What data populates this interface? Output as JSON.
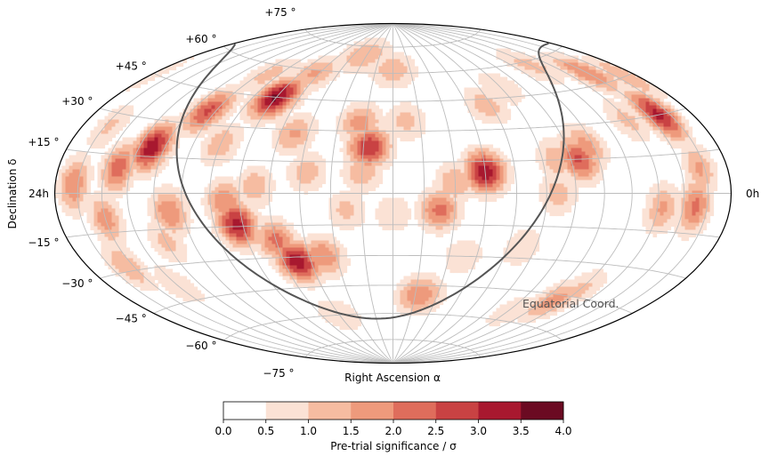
{
  "chart_data": {
    "type": "heatmap",
    "projection": "hammer-aitoff",
    "coordinate_system": "equatorial",
    "annotation": "Equatorial Coord.",
    "xlabel": "Right Ascension α",
    "ylabel": "Declination δ",
    "ra_range_h": [
      0,
      24
    ],
    "dec_range_deg": [
      -90,
      90
    ],
    "ra_edge_labels": {
      "left": "24h",
      "right": "0h"
    },
    "dec_tick_labels": [
      {
        "dec": 75,
        "label": "+75 °"
      },
      {
        "dec": 60,
        "label": "+60 °"
      },
      {
        "dec": 45,
        "label": "+45 °"
      },
      {
        "dec": 30,
        "label": "+30 °"
      },
      {
        "dec": 15,
        "label": "+15 °"
      },
      {
        "dec": -15,
        "label": "−15 °"
      },
      {
        "dec": -30,
        "label": "−30 °"
      },
      {
        "dec": -45,
        "label": "−45 °"
      },
      {
        "dec": -60,
        "label": "−60 °"
      },
      {
        "dec": -75,
        "label": "−75 °"
      }
    ],
    "colorbar": {
      "label": "Pre-trial significance / σ",
      "ticks": [
        "0.0",
        "0.5",
        "1.0",
        "1.5",
        "2.0",
        "2.5",
        "3.0",
        "3.5",
        "4.0"
      ],
      "range": [
        0,
        4
      ],
      "levels": [
        0,
        0.5,
        1.0,
        1.5,
        2.0,
        2.5,
        3.0,
        3.5,
        4.0
      ],
      "colors": [
        "#ffffff",
        "#fbe2d5",
        "#f6bca1",
        "#ee9a7c",
        "#df6d5c",
        "#c94243",
        "#a8182f",
        "#6b0a22"
      ]
    },
    "hotspots": [
      {
        "ra_h": 1.5,
        "dec": 30,
        "sigma": 3.2
      },
      {
        "ra_h": 2.0,
        "dec": 50,
        "sigma": 2.0
      },
      {
        "ra_h": 5.7,
        "dec": 15,
        "sigma": 2.6
      },
      {
        "ra_h": 5.3,
        "dec": 20,
        "sigma": 1.8
      },
      {
        "ra_h": 6.6,
        "dec": 0,
        "sigma": 1.3
      },
      {
        "ra_h": 9.0,
        "dec": 10,
        "sigma": 3.4
      },
      {
        "ra_h": 10.0,
        "dec": 5,
        "sigma": 1.5
      },
      {
        "ra_h": 10.5,
        "dec": -8,
        "sigma": 2.2
      },
      {
        "ra_h": 12.8,
        "dec": 22,
        "sigma": 3.0
      },
      {
        "ra_h": 13.2,
        "dec": 34,
        "sigma": 1.8
      },
      {
        "ra_h": 13.0,
        "dec": 10,
        "sigma": 1.4
      },
      {
        "ra_h": 14.2,
        "dec": 70,
        "sigma": 1.5
      },
      {
        "ra_h": 15.5,
        "dec": 28,
        "sigma": 1.6
      },
      {
        "ra_h": 16.5,
        "dec": 3,
        "sigma": 1.4
      },
      {
        "ra_h": 16.3,
        "dec": 58,
        "sigma": 1.6
      },
      {
        "ra_h": 17.0,
        "dec": 45,
        "sigma": 3.6
      },
      {
        "ra_h": 17.2,
        "dec": -14,
        "sigma": 3.3
      },
      {
        "ra_h": 16.0,
        "dec": -22,
        "sigma": 2.2
      },
      {
        "ra_h": 15.5,
        "dec": -32,
        "sigma": 3.4
      },
      {
        "ra_h": 14.5,
        "dec": -30,
        "sigma": 2.0
      },
      {
        "ra_h": 17.5,
        "dec": -4,
        "sigma": 2.0
      },
      {
        "ra_h": 19.3,
        "dec": 36,
        "sigma": 2.6
      },
      {
        "ra_h": 20.5,
        "dec": 19,
        "sigma": 3.4
      },
      {
        "ra_h": 21.5,
        "dec": 10,
        "sigma": 2.3
      },
      {
        "ra_h": 19.5,
        "dec": -8,
        "sigma": 2.0
      },
      {
        "ra_h": 22.0,
        "dec": -10,
        "sigma": 1.8
      },
      {
        "ra_h": 22.3,
        "dec": -28,
        "sigma": 1.5
      },
      {
        "ra_h": 23.2,
        "dec": 3,
        "sigma": 2.0
      },
      {
        "ra_h": 10.8,
        "dec": -50,
        "sigma": 2.0
      },
      {
        "ra_h": 4.5,
        "dec": -48,
        "sigma": 1.8
      },
      {
        "ra_h": 4.0,
        "dec": -42,
        "sigma": 1.2
      },
      {
        "ra_h": 5.8,
        "dec": -55,
        "sigma": 0.9
      },
      {
        "ra_h": 1.5,
        "dec": -5,
        "sigma": 2.2
      },
      {
        "ra_h": 1.2,
        "dec": 9,
        "sigma": 1.6
      },
      {
        "ra_h": 2.8,
        "dec": -6,
        "sigma": 1.6
      },
      {
        "ra_h": 0.5,
        "dec": 45,
        "sigma": 1.5
      },
      {
        "ra_h": 6.5,
        "dec": 15,
        "sigma": 1.4
      },
      {
        "ra_h": 8.2,
        "dec": 42,
        "sigma": 1.3
      },
      {
        "ra_h": 4.0,
        "dec": 58,
        "sigma": 1.2
      },
      {
        "ra_h": 11.5,
        "dec": 35,
        "sigma": 1.2
      },
      {
        "ra_h": 12.0,
        "dec": 62,
        "sigma": 1.4
      },
      {
        "ra_h": 14.8,
        "dec": 10,
        "sigma": 1.3
      },
      {
        "ra_h": 18.5,
        "dec": 55,
        "sigma": 1.2
      },
      {
        "ra_h": 21.0,
        "dec": -38,
        "sigma": 1.0
      },
      {
        "ra_h": 18.0,
        "dec": 22,
        "sigma": 1.4
      },
      {
        "ra_h": 13.5,
        "dec": -8,
        "sigma": 1.2
      },
      {
        "ra_h": 7.5,
        "dec": -25,
        "sigma": 1.0
      },
      {
        "ra_h": 12.0,
        "dec": -10,
        "sigma": 1.0
      },
      {
        "ra_h": 3.0,
        "dec": 30,
        "sigma": 1.2
      },
      {
        "ra_h": 9.5,
        "dec": -30,
        "sigma": 1.0
      },
      {
        "ra_h": 7.0,
        "dec": 50,
        "sigma": 1.0
      },
      {
        "ra_h": 15.0,
        "dec": -60,
        "sigma": 1.0
      },
      {
        "ra_h": 20.0,
        "dec": -20,
        "sigma": 1.2
      },
      {
        "ra_h": 22.8,
        "dec": 25,
        "sigma": 1.1
      }
    ]
  }
}
